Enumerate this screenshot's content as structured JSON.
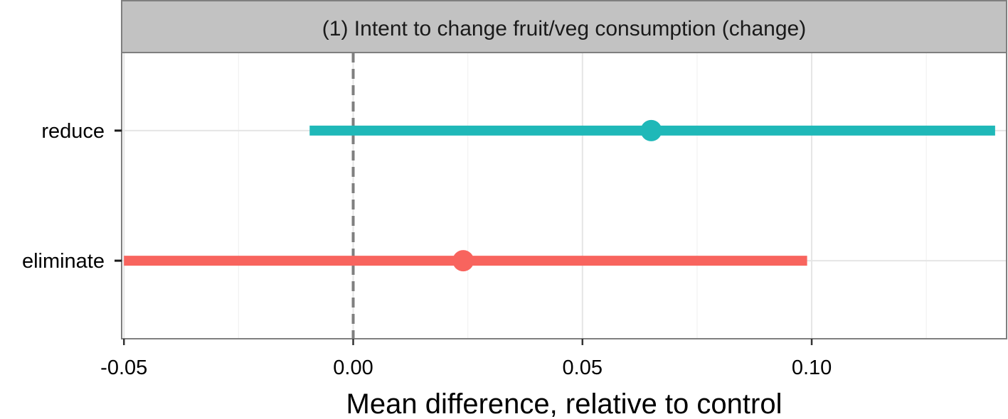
{
  "chart_data": {
    "type": "pointrange",
    "title": "",
    "facet_label": "(1) Intent to change fruit/veg consumption (change)",
    "xlabel": "Mean difference, relative to control",
    "ylabel": "",
    "xlim": [
      -0.0505,
      0.1425
    ],
    "x_ticks": [
      -0.05,
      0.0,
      0.05,
      0.1
    ],
    "x_tick_labels": [
      "-0.05",
      "0.00",
      "0.05",
      "0.10"
    ],
    "x_minor_ticks": [
      -0.025,
      0.025,
      0.075,
      0.125
    ],
    "reference_line": {
      "x": 0,
      "style": "dashed",
      "color": "#7f7f7f"
    },
    "categories": [
      "reduce",
      "eliminate"
    ],
    "series": [
      {
        "category": "reduce",
        "estimate": 0.065,
        "low": -0.0095,
        "high": 0.14,
        "color": "#1fb8b8"
      },
      {
        "category": "eliminate",
        "estimate": 0.024,
        "low": -0.05,
        "high": 0.099,
        "color": "#f8645e"
      }
    ],
    "grid": true,
    "legend": "none",
    "panel_background": "#ffffff",
    "strip_background": "#c2c2c2"
  }
}
